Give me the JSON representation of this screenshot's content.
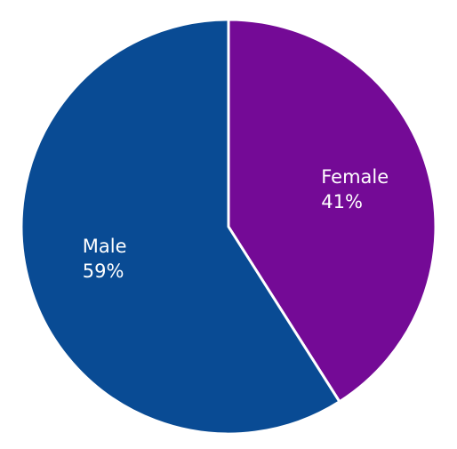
{
  "chart_data": {
    "type": "pie",
    "title": "",
    "slices": [
      {
        "label": "Female",
        "value": 41,
        "value_label": "41%",
        "color": "#740a96"
      },
      {
        "label": "Male",
        "value": 59,
        "value_label": "59%",
        "color": "#094b94"
      }
    ],
    "start_angle": "12 o'clock",
    "direction": "clockwise",
    "legend": "none",
    "separator_color": "#ffffff"
  }
}
